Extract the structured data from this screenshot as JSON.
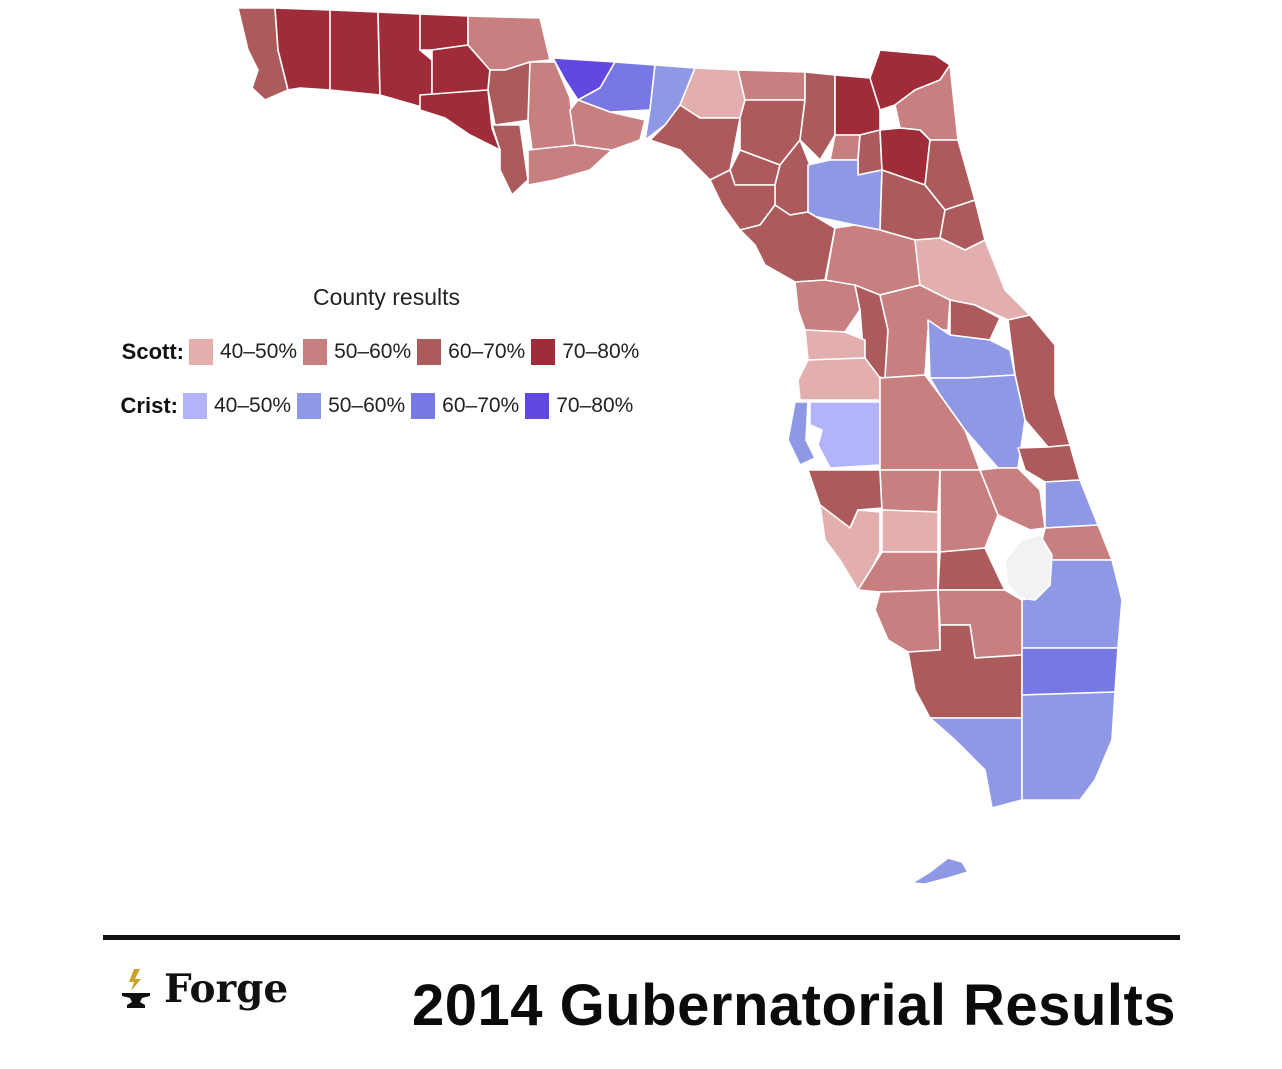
{
  "legend": {
    "title": "County results",
    "scott": {
      "label": "Scott:",
      "bins": [
        {
          "label": "40–50%",
          "color": "#e2aeae"
        },
        {
          "label": "50–60%",
          "color": "#c77f80"
        },
        {
          "label": "60–70%",
          "color": "#ac5a5c"
        },
        {
          "label": "70–80%",
          "color": "#a02c3a"
        }
      ]
    },
    "crist": {
      "label": "Crist:",
      "bins": [
        {
          "label": "40–50%",
          "color": "#b3b3fb"
        },
        {
          "label": "50–60%",
          "color": "#8e98e4"
        },
        {
          "label": "60–70%",
          "color": "#7878e4"
        },
        {
          "label": "70–80%",
          "color": "#6247e0"
        }
      ]
    }
  },
  "brand": {
    "name": "Forge",
    "icon": "anvil-lightning-icon"
  },
  "page_title": "2014 Gubernatorial Results",
  "colors": {
    "county_border": "#ffffff",
    "lake": "#f2f2f2",
    "rule": "#111111"
  }
}
